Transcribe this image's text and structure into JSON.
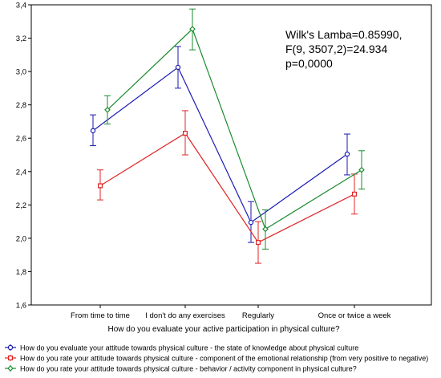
{
  "chart_data": {
    "type": "line",
    "categories": [
      "From time to time",
      "I don't do any exercises",
      "Regularly",
      "Once or twice a week"
    ],
    "xlabel": "How do you evaluate your active participation in physical culture?",
    "ylabel": "",
    "ylim": [
      1.6,
      3.4
    ],
    "yticks": [
      "1,6",
      "1,8",
      "2,0",
      "2,2",
      "2,4",
      "2,6",
      "2,8",
      "3,0",
      "3,2",
      "3,4"
    ],
    "error_bars": true,
    "legend_position": "bottom",
    "annotation": [
      "Wilk's Lamba=0.85990,",
      "F(9, 3507,2)=24.934",
      "p=0,0000"
    ],
    "series": [
      {
        "name": "How do you evaluate your attitude towards physical culture - the state of knowledge about physical culture",
        "color": "#1a1ab4",
        "marker": "circle",
        "values": [
          2.645,
          3.025,
          2.095,
          2.505
        ],
        "lower": [
          2.555,
          2.9,
          1.975,
          2.38
        ],
        "upper": [
          2.74,
          3.15,
          2.22,
          2.625
        ]
      },
      {
        "name": "How do you rate your attitude towards physical culture - component of the emotional relationship (from very positive to negative)",
        "color": "#e02424",
        "marker": "square",
        "values": [
          2.315,
          2.63,
          1.975,
          2.265
        ],
        "lower": [
          2.23,
          2.5,
          1.85,
          2.145
        ],
        "upper": [
          2.41,
          2.765,
          2.1,
          2.385
        ]
      },
      {
        "name": "How do you rate your attitude towards physical culture - behavior / activity component in physical culture?",
        "color": "#1a8c2e",
        "marker": "diamond",
        "values": [
          2.77,
          3.255,
          2.055,
          2.41
        ],
        "lower": [
          2.685,
          3.13,
          1.935,
          2.295
        ],
        "upper": [
          2.855,
          3.375,
          2.17,
          2.525
        ]
      }
    ]
  }
}
